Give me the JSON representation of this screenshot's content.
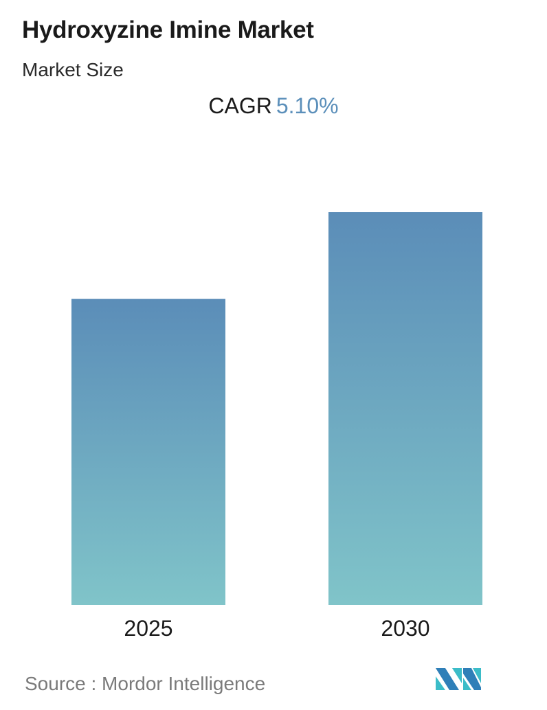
{
  "header": {
    "title": "Hydroxyzine Imine Market",
    "subtitle": "Market Size"
  },
  "cagr": {
    "label": "CAGR",
    "value": "5.10%"
  },
  "chart_data": {
    "type": "bar",
    "categories": [
      "2025",
      "2030"
    ],
    "values": [
      100,
      128.3
    ],
    "value_note": "",
    "title": "Hydroxyzine Imine Market",
    "xlabel": "",
    "ylabel": "",
    "ylim": [
      0,
      128.3
    ],
    "grid": false,
    "colors": {
      "bar_top": "#5b8db8",
      "bar_bottom": "#80c4c9",
      "cagr": "#5b8fba"
    }
  },
  "footer": {
    "source": "Source :  Mordor Intelligence",
    "logo": "Mordor Intelligence"
  }
}
